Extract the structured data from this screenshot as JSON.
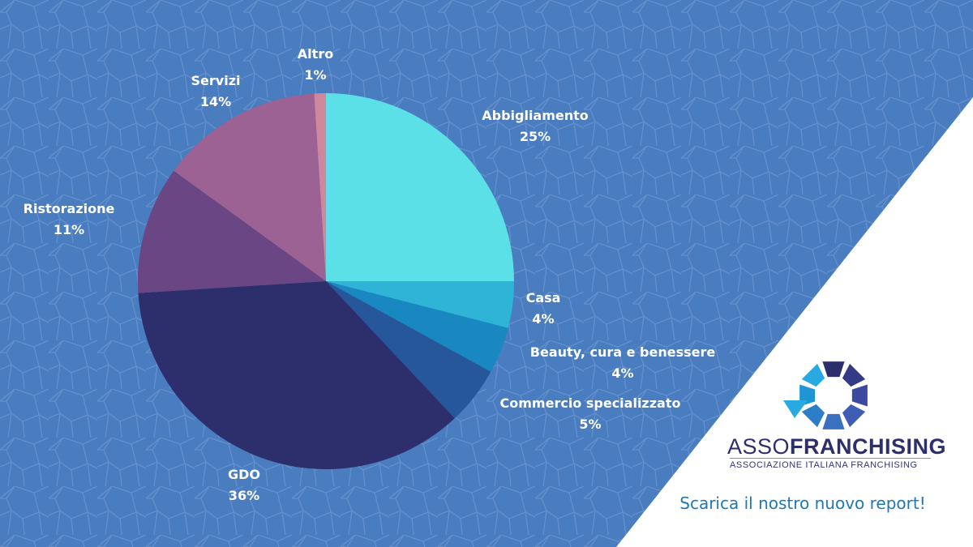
{
  "chart_data": {
    "type": "pie",
    "categories": [
      "Abbigliamento",
      "Casa",
      "Beauty, cura e benessere",
      "Commercio specializzato",
      "GDO",
      "Ristorazione",
      "Servizi",
      "Altro"
    ],
    "values": [
      25,
      4,
      4,
      5,
      36,
      11,
      14,
      1
    ],
    "labels": [
      {
        "name": "Abbigliamento",
        "pct": "25%"
      },
      {
        "name": "Casa",
        "pct": "4%"
      },
      {
        "name": "Beauty, cura e benessere",
        "pct": "4%"
      },
      {
        "name": "Commercio specializzato",
        "pct": "5%"
      },
      {
        "name": "GDO",
        "pct": "36%"
      },
      {
        "name": "Ristorazione",
        "pct": "11%"
      },
      {
        "name": "Servizi",
        "pct": "14%"
      },
      {
        "name": "Altro",
        "pct": "1%"
      }
    ],
    "colors": [
      "#5ae0e6",
      "#2fb4d8",
      "#1a88c0",
      "#26579a",
      "#2d2f6c",
      "#6a4784",
      "#9b6293",
      "#cf879c"
    ],
    "start": "12 o'clock",
    "direction": "clockwise"
  },
  "brand": {
    "name_light": "ASSO",
    "name_bold": "FRANCHISING",
    "tagline": "ASSOCIAZIONE ITALIANA FRANCHISING",
    "colors": [
      "#2c2f6b",
      "#3a3f8f",
      "#1e78b8",
      "#2aa8e0"
    ]
  },
  "cta": "Scarica il nostro nuovo report!",
  "background_color": "#4a7cc0",
  "panel_color": "#ffffff"
}
